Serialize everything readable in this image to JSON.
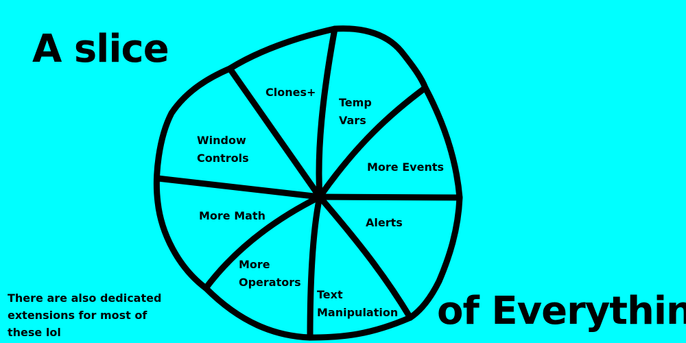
{
  "background_color": "#00ffff",
  "ink_color": "#000000",
  "title": {
    "left": "A slice",
    "right": "of Everything"
  },
  "note": "There are also dedicated extensions for most of these lol",
  "slices": [
    {
      "id": "clones",
      "label": "Clones+"
    },
    {
      "id": "temp-vars",
      "line1": "Temp",
      "line2": "Vars"
    },
    {
      "id": "window-controls",
      "line1": "Window",
      "line2": "Controls"
    },
    {
      "id": "more-events",
      "label": "More Events"
    },
    {
      "id": "more-math",
      "label": "More Math"
    },
    {
      "id": "alerts",
      "label": "Alerts"
    },
    {
      "id": "more-operators",
      "line1": "More",
      "line2": "Operators"
    },
    {
      "id": "text-manipulation",
      "line1": "Text",
      "line2": "Manipulation"
    }
  ]
}
